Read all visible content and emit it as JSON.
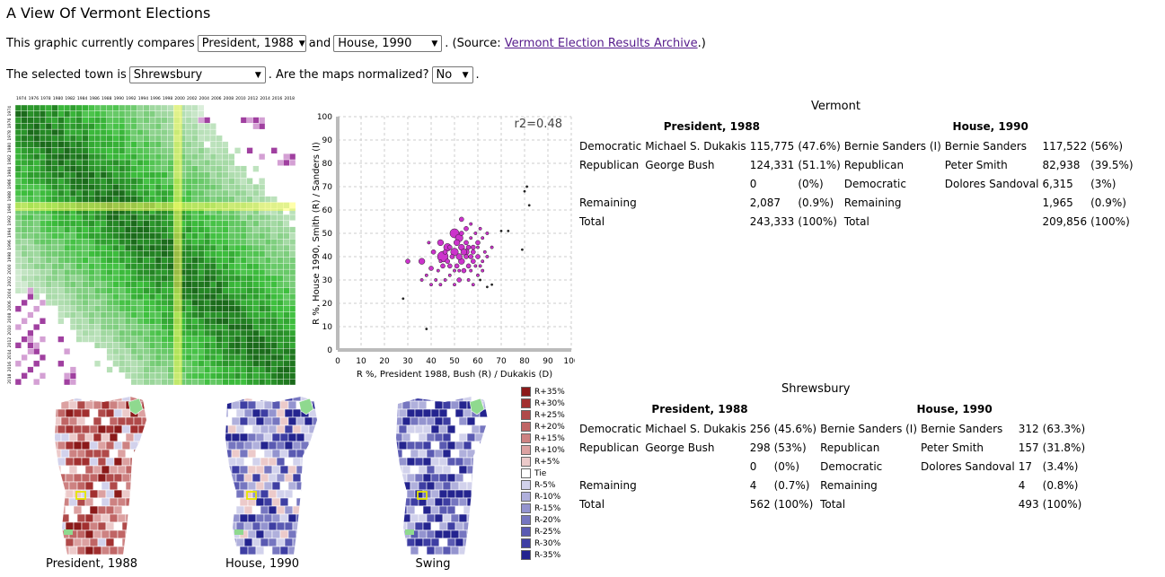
{
  "title": "A View Of Vermont Elections",
  "row1": {
    "prefix": "This graphic currently compares",
    "election_a": "President, 1988",
    "and": "and",
    "election_b": "House, 1990",
    "source_prefix": ". (Source:",
    "source_link": "Vermont Election Results Archive",
    "source_suffix": ".)"
  },
  "row2": {
    "prefix": "The selected town is",
    "town": "Shrewsbury",
    "middle": ". Are the maps normalized?",
    "normalized": "No",
    "suffix": "."
  },
  "matrix_years": [
    "1974",
    "1976",
    "1978",
    "1980",
    "1982",
    "1984",
    "1986",
    "1988",
    "1990",
    "1992",
    "1994",
    "1996",
    "1998",
    "2000",
    "2002",
    "2004",
    "2006",
    "2008",
    "2010",
    "2012",
    "2014",
    "2016",
    "2018"
  ],
  "colors": {
    "accent": "#cc33cc",
    "link": "#551a8b",
    "highlight": "#ffff66",
    "matrix_green": "#2e7d32",
    "rep": "#8b1a1a",
    "dem": "#1a1a8b"
  },
  "chart_data": {
    "type": "scatter",
    "annotation": "r2=0.48",
    "xlabel": "R %, President 1988, Bush (R) / Dukakis (D)",
    "ylabel": "R %, House 1990, Smith (R) / Sanders (I)",
    "xlim": [
      0,
      100
    ],
    "ylim": [
      0,
      100
    ],
    "xticks": [
      "0",
      "10",
      "20",
      "30",
      "40",
      "50",
      "60",
      "70",
      "80",
      "90",
      "100"
    ],
    "yticks": [
      "0",
      "10",
      "20",
      "30",
      "40",
      "50",
      "60",
      "70",
      "80",
      "90",
      "100"
    ],
    "grid": true,
    "points": [
      [
        50,
        50,
        6
      ],
      [
        47,
        44,
        5
      ],
      [
        45,
        40,
        7
      ],
      [
        36,
        38,
        4
      ],
      [
        40,
        35,
        3
      ],
      [
        44,
        46,
        4
      ],
      [
        52,
        48,
        5
      ],
      [
        55,
        42,
        4
      ],
      [
        57,
        40,
        3
      ],
      [
        53,
        38,
        4
      ],
      [
        50,
        42,
        5
      ],
      [
        48,
        36,
        3
      ],
      [
        58,
        44,
        3
      ],
      [
        60,
        46,
        3
      ],
      [
        62,
        48,
        2
      ],
      [
        54,
        34,
        3
      ],
      [
        56,
        36,
        3
      ],
      [
        52,
        30,
        3
      ],
      [
        48,
        32,
        2
      ],
      [
        46,
        30,
        2
      ],
      [
        58,
        38,
        3
      ],
      [
        60,
        40,
        3
      ],
      [
        61,
        36,
        2
      ],
      [
        63,
        42,
        2
      ],
      [
        55,
        52,
        3
      ],
      [
        53,
        56,
        3
      ],
      [
        57,
        54,
        2
      ],
      [
        59,
        50,
        2
      ],
      [
        61,
        52,
        2
      ],
      [
        64,
        50,
        2
      ],
      [
        66,
        44,
        2
      ],
      [
        51,
        46,
        4
      ],
      [
        49,
        40,
        3
      ],
      [
        47,
        38,
        3
      ],
      [
        45,
        36,
        3
      ],
      [
        43,
        34,
        2
      ],
      [
        42,
        30,
        2
      ],
      [
        44,
        28,
        2
      ],
      [
        50,
        28,
        2
      ],
      [
        56,
        30,
        2
      ],
      [
        60,
        32,
        2
      ],
      [
        62,
        34,
        2
      ],
      [
        58,
        28,
        2
      ],
      [
        53,
        44,
        4
      ],
      [
        55,
        46,
        3
      ],
      [
        51,
        36,
        3
      ],
      [
        57,
        34,
        2
      ],
      [
        59,
        36,
        2
      ],
      [
        41,
        42,
        3
      ],
      [
        39,
        46,
        2
      ],
      [
        38,
        32,
        2
      ],
      [
        40,
        28,
        2
      ],
      [
        36,
        30,
        2
      ],
      [
        30,
        38,
        3
      ],
      [
        28,
        22,
        1
      ],
      [
        38,
        9,
        1
      ],
      [
        64,
        27,
        1
      ],
      [
        66,
        28,
        1
      ],
      [
        70,
        51,
        1
      ],
      [
        73,
        51,
        1
      ],
      [
        79,
        43,
        1
      ],
      [
        80,
        68,
        1
      ],
      [
        81,
        70,
        1
      ],
      [
        82,
        62,
        1
      ],
      [
        61,
        30,
        1
      ],
      [
        55,
        40,
        3
      ],
      [
        52,
        40,
        4
      ],
      [
        54,
        42,
        4
      ],
      [
        56,
        44,
        3
      ],
      [
        48,
        44,
        3
      ],
      [
        46,
        42,
        3
      ],
      [
        60,
        44,
        2
      ],
      [
        62,
        38,
        2
      ],
      [
        64,
        40,
        2
      ],
      [
        50,
        34,
        2
      ],
      [
        52,
        34,
        2
      ],
      [
        44,
        38,
        2
      ],
      [
        58,
        42,
        3
      ],
      [
        57,
        48,
        2
      ],
      [
        53,
        50,
        3
      ]
    ]
  },
  "maps": {
    "a_label": "President, 1988",
    "b_label": "House, 1990",
    "swing_label": "Swing"
  },
  "legend": [
    {
      "label": "R+35%",
      "color": "#8b1a1a"
    },
    {
      "label": "R+30%",
      "color": "#a23030"
    },
    {
      "label": "R+25%",
      "color": "#b04a4a"
    },
    {
      "label": "R+20%",
      "color": "#c06565"
    },
    {
      "label": "R+15%",
      "color": "#cd8282"
    },
    {
      "label": "R+10%",
      "color": "#dca1a1"
    },
    {
      "label": "R+5%",
      "color": "#eccaca"
    },
    {
      "label": "Tie",
      "color": "#ffffff"
    },
    {
      "label": "R-5%",
      "color": "#d2d2ec"
    },
    {
      "label": "R-10%",
      "color": "#b0b0dc"
    },
    {
      "label": "R-15%",
      "color": "#9494cf"
    },
    {
      "label": "R-20%",
      "color": "#7676c0"
    },
    {
      "label": "R-25%",
      "color": "#5a5ab2"
    },
    {
      "label": "R-30%",
      "color": "#3e3ea3"
    },
    {
      "label": "R-35%",
      "color": "#24248f"
    }
  ],
  "vermont": {
    "title": "Vermont",
    "head_a": "President, 1988",
    "head_b": "House, 1990",
    "rows": [
      [
        "Democratic",
        "Michael S. Dukakis",
        "115,775",
        "(47.6%)",
        "Bernie Sanders (I)",
        "Bernie Sanders",
        "117,522",
        "(56%)"
      ],
      [
        "Republican",
        "George Bush",
        "124,331",
        "(51.1%)",
        "Republican",
        "Peter Smith",
        "82,938",
        "(39.5%)"
      ],
      [
        "",
        "",
        "0",
        "(0%)",
        "Democratic",
        "Dolores Sandoval",
        "6,315",
        "(3%)"
      ],
      [
        "Remaining",
        "",
        "2,087",
        "(0.9%)",
        "Remaining",
        "",
        "1,965",
        "(0.9%)"
      ],
      [
        "Total",
        "",
        "243,333",
        "(100%)",
        "Total",
        "",
        "209,856",
        "(100%)"
      ]
    ]
  },
  "town": {
    "title": "Shrewsbury",
    "head_a": "President, 1988",
    "head_b": "House, 1990",
    "rows": [
      [
        "Democratic",
        "Michael S. Dukakis",
        "256",
        "(45.6%)",
        "Bernie Sanders (I)",
        "Bernie Sanders",
        "312",
        "(63.3%)"
      ],
      [
        "Republican",
        "George Bush",
        "298",
        "(53%)",
        "Republican",
        "Peter Smith",
        "157",
        "(31.8%)"
      ],
      [
        "",
        "",
        "0",
        "(0%)",
        "Democratic",
        "Dolores Sandoval",
        "17",
        "(3.4%)"
      ],
      [
        "Remaining",
        "",
        "4",
        "(0.7%)",
        "Remaining",
        "",
        "4",
        "(0.8%)"
      ],
      [
        "Total",
        "",
        "562",
        "(100%)",
        "Total",
        "",
        "493",
        "(100%)"
      ]
    ]
  }
}
